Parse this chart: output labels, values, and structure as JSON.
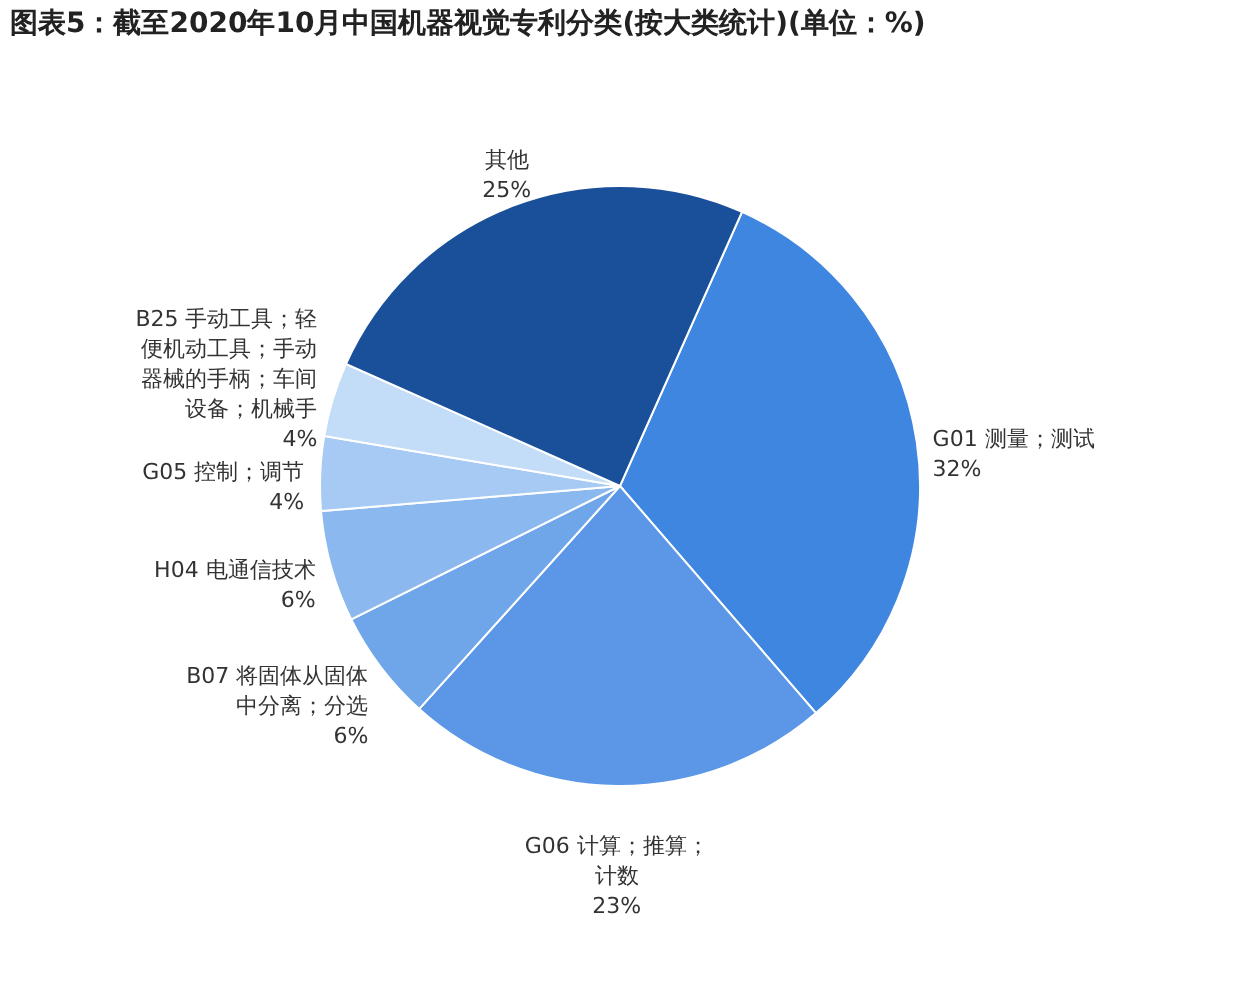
{
  "chart_data": {
    "type": "pie",
    "title": "图表5：截至2020年10月中国机器视觉专利分类(按大类统计)(单位：%)",
    "categories": [
      "G01 测量；测试",
      "G06 计算；推算；计数",
      "B07 将固体从固体中分离；分选",
      "H04 电通信技术",
      "G05 控制；调节",
      "B25 手动工具；轻便机动工具；手动器械的手柄；车间设备；机械手",
      "其他"
    ],
    "values": [
      32,
      23,
      6,
      6,
      4,
      4,
      25
    ],
    "value_labels": [
      "32%",
      "23%",
      "6%",
      "6%",
      "4%",
      "4%",
      "25%"
    ],
    "colors": [
      "#3f86e0",
      "#5b97e6",
      "#6fa6ea",
      "#8ab8ef",
      "#a6caf3",
      "#c3dcf7",
      "#1a4f9a"
    ],
    "legend": false
  }
}
